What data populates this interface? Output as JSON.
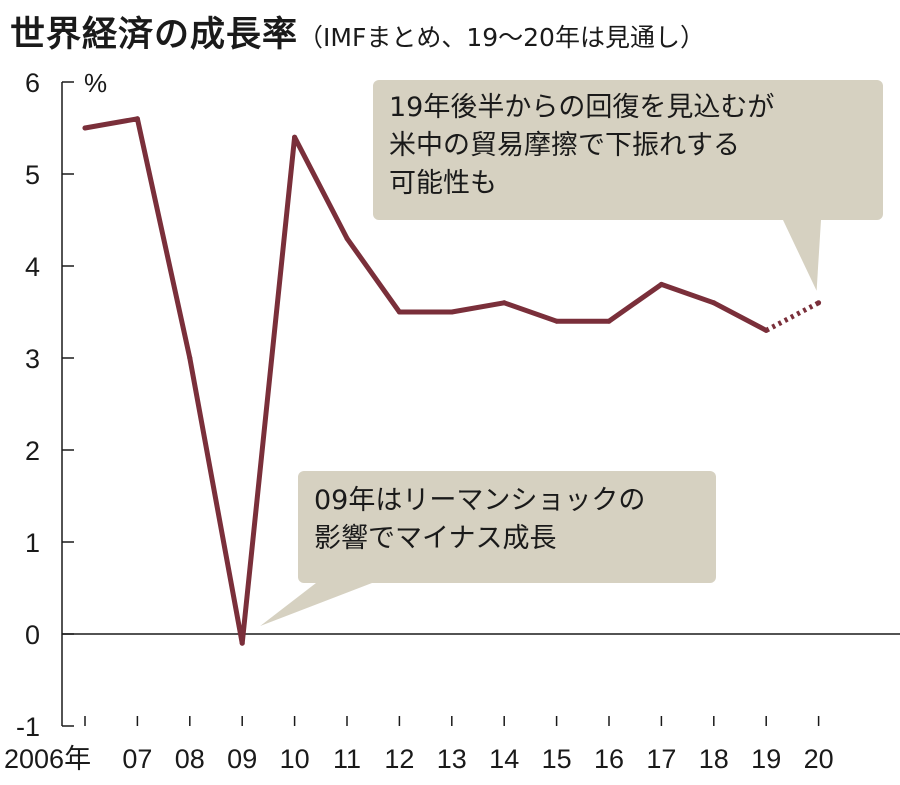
{
  "chart_data": {
    "type": "line",
    "title": "世界経済の成長率",
    "subtitle": "（IMFまとめ、19～20年は見通し）",
    "ylabel": "%",
    "xlabel": "",
    "ylim": [
      -1,
      6
    ],
    "yticks": [
      -1,
      0,
      1,
      2,
      3,
      4,
      5,
      6
    ],
    "x": [
      "2006年",
      "07",
      "08",
      "09",
      "10",
      "11",
      "12",
      "13",
      "14",
      "15",
      "16",
      "17",
      "18",
      "19",
      "20"
    ],
    "series": [
      {
        "values": [
          5.5,
          5.6,
          3.0,
          -0.1,
          5.4,
          4.3,
          3.5,
          3.5,
          3.6,
          3.4,
          3.4,
          3.8,
          3.6,
          3.3,
          3.6
        ],
        "forecast_from_index": 13,
        "color": "#7a2f3a"
      }
    ],
    "zero_line": true,
    "grid": false,
    "annotations": [
      {
        "lines": [
          "19年後半からの回復を見込むが",
          "米中の貿易摩擦で下振れする",
          "可能性も"
        ],
        "points_to": "20"
      },
      {
        "lines": [
          "09年はリーマンショックの",
          "影響でマイナス成長"
        ],
        "points_to": "09"
      }
    ],
    "colors": {
      "line": "#7a2f3a",
      "callout_fill": "#d6d1c1",
      "axis": "#1a1a1a"
    }
  }
}
